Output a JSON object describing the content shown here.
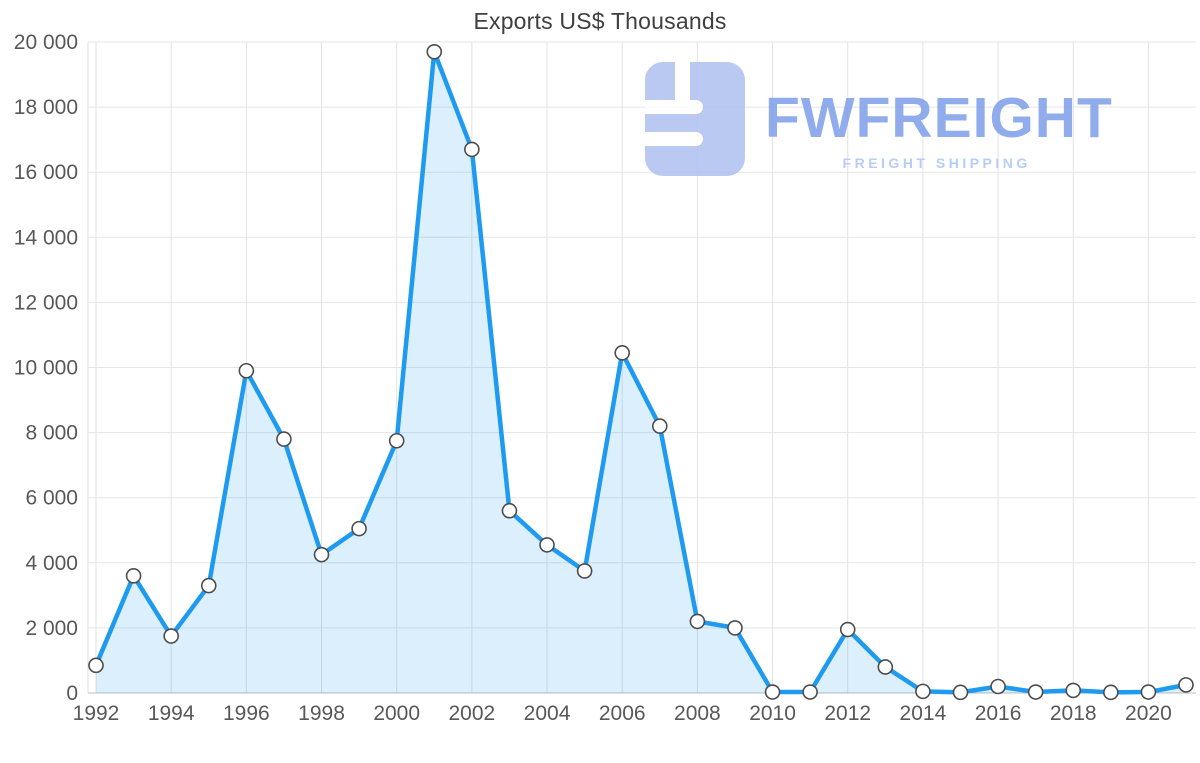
{
  "title": "Exports US$ Thousands",
  "watermark": {
    "brand": "FWFREIGHT",
    "tagline": "FREIGHT SHIPPING",
    "logo_color": "#afc0f0",
    "brand_color": "#7d9ee9",
    "tagline_color": "#abc5f4"
  },
  "chart_data": {
    "type": "area",
    "title": "Exports US$ Thousands",
    "xlabel": "",
    "ylabel": "",
    "grid": true,
    "legend": false,
    "x": [
      1992,
      1993,
      1994,
      1995,
      1996,
      1997,
      1998,
      1999,
      2000,
      2001,
      2002,
      2003,
      2004,
      2005,
      2006,
      2007,
      2008,
      2009,
      2010,
      2011,
      2012,
      2013,
      2014,
      2015,
      2016,
      2017,
      2018,
      2019,
      2020,
      2021
    ],
    "values": [
      850,
      3600,
      1750,
      3300,
      9900,
      7800,
      4250,
      5050,
      7750,
      19700,
      16700,
      5600,
      4550,
      3750,
      10450,
      8200,
      2200,
      2000,
      30,
      30,
      1950,
      800,
      50,
      20,
      200,
      30,
      80,
      20,
      30,
      250
    ],
    "ylim": [
      0,
      20000
    ],
    "y_ticks": [
      0,
      2000,
      4000,
      6000,
      8000,
      10000,
      12000,
      14000,
      16000,
      18000,
      20000
    ],
    "y_tick_labels": [
      "0",
      "2 000",
      "4 000",
      "6 000",
      "8 000",
      "10 000",
      "12 000",
      "14 000",
      "16 000",
      "18 000",
      "20 000"
    ],
    "x_tick_years": [
      1992,
      1994,
      1996,
      1998,
      2000,
      2002,
      2004,
      2006,
      2008,
      2010,
      2012,
      2014,
      2016,
      2018,
      2020
    ],
    "x_tick_labels": [
      "1992",
      "1994",
      "1996",
      "1998",
      "2000",
      "2002",
      "2004",
      "2006",
      "2008",
      "2010",
      "2012",
      "2014",
      "2016",
      "2018",
      "2020"
    ],
    "line_color": "#1e9bf0",
    "area_color": "rgba(30,155,240,0.16)",
    "marker_fill": "#ffffff",
    "marker_stroke": "#4d4d4d"
  }
}
